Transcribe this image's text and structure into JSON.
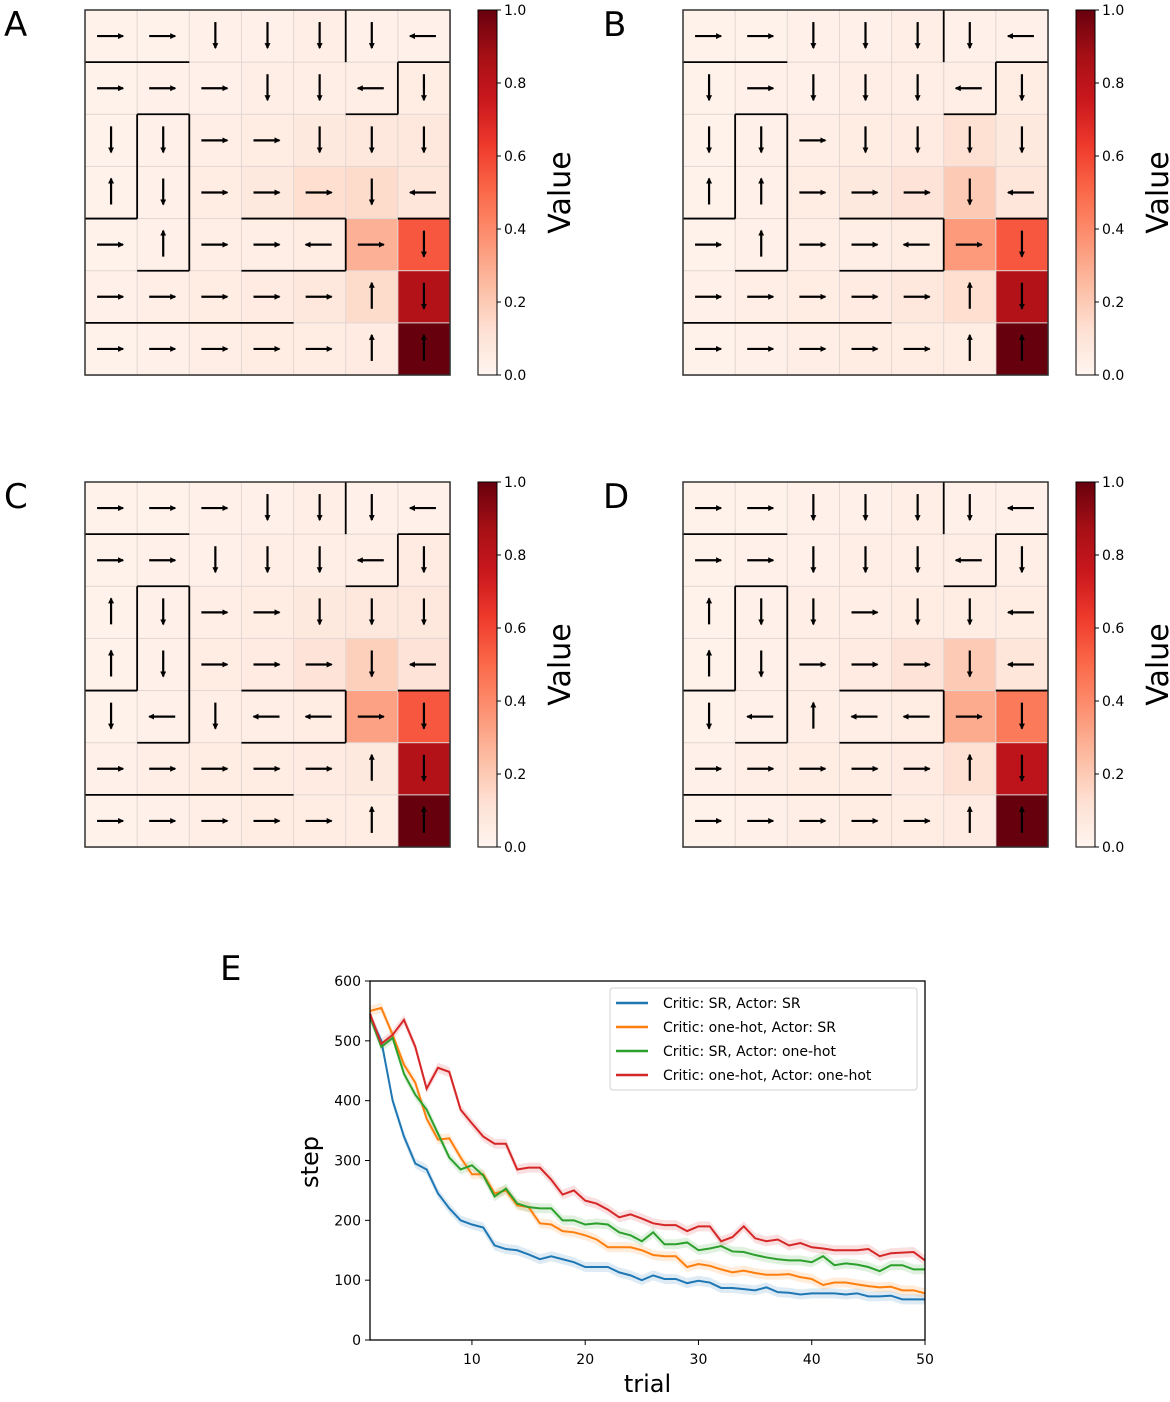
{
  "colors": {
    "blue": "#1f77b4",
    "orange": "#ff7f0e",
    "green": "#2ca02c",
    "red": "#d62728"
  },
  "colormap": [
    "#fff5f0",
    "#fee0d2",
    "#fcbba1",
    "#fc9272",
    "#fb6a4a",
    "#ef3b2c",
    "#cb181d",
    "#a50f15",
    "#67000d"
  ],
  "chart_data": [
    {
      "type": "heatmap",
      "panel": "A",
      "colorbar_label": "Value",
      "colorbar_ticks": [
        "0.0",
        "0.2",
        "0.4",
        "0.6",
        "0.8",
        "1.0"
      ],
      "vrange": [
        0,
        1
      ],
      "arrows": [
        "RRDDDDL",
        "RRRDDLD",
        "DDRRDDD",
        "UDRRRDL",
        "RURRLRD",
        "RRRRRUD",
        "RRRRRUU"
      ],
      "values": [
        [
          0.02,
          0.02,
          0.03,
          0.03,
          0.04,
          0.03,
          0.03
        ],
        [
          0.02,
          0.03,
          0.03,
          0.04,
          0.04,
          0.04,
          0.05
        ],
        [
          0.02,
          0.03,
          0.04,
          0.05,
          0.07,
          0.08,
          0.08
        ],
        [
          0.02,
          0.03,
          0.05,
          0.07,
          0.13,
          0.14,
          0.09
        ],
        [
          0.02,
          0.03,
          0.04,
          0.04,
          0.05,
          0.28,
          0.55
        ],
        [
          0.03,
          0.04,
          0.05,
          0.06,
          0.08,
          0.14,
          0.83
        ],
        [
          0.02,
          0.03,
          0.04,
          0.05,
          0.05,
          0.06,
          1.0
        ]
      ]
    },
    {
      "type": "heatmap",
      "panel": "B",
      "colorbar_label": "Value",
      "colorbar_ticks": [
        "0.0",
        "0.2",
        "0.4",
        "0.6",
        "0.8",
        "1.0"
      ],
      "vrange": [
        0,
        1
      ],
      "arrows": [
        "RRDDDDL",
        "DRDDDLD",
        "DDRDDDD",
        "UURRRDL",
        "RURRLRD",
        "RRRRRUD",
        "RRRRRUU"
      ],
      "values": [
        [
          0.02,
          0.02,
          0.03,
          0.03,
          0.04,
          0.03,
          0.03
        ],
        [
          0.02,
          0.03,
          0.03,
          0.04,
          0.04,
          0.04,
          0.05
        ],
        [
          0.02,
          0.03,
          0.04,
          0.05,
          0.06,
          0.12,
          0.07
        ],
        [
          0.02,
          0.03,
          0.05,
          0.07,
          0.1,
          0.2,
          0.09
        ],
        [
          0.02,
          0.03,
          0.04,
          0.04,
          0.05,
          0.35,
          0.55
        ],
        [
          0.03,
          0.04,
          0.05,
          0.06,
          0.08,
          0.13,
          0.83
        ],
        [
          0.02,
          0.03,
          0.04,
          0.05,
          0.05,
          0.05,
          1.0
        ]
      ]
    },
    {
      "type": "heatmap",
      "panel": "C",
      "colorbar_label": "Value",
      "colorbar_ticks": [
        "0.0",
        "0.2",
        "0.4",
        "0.6",
        "0.8",
        "1.0"
      ],
      "vrange": [
        0,
        1
      ],
      "arrows": [
        "RRRDDDL",
        "RRDDDLD",
        "UDRRDDD",
        "UDRRRDL",
        "DLDLLRD",
        "RRRRRUD",
        "RRRRRUU"
      ],
      "values": [
        [
          0.02,
          0.02,
          0.03,
          0.03,
          0.04,
          0.03,
          0.03
        ],
        [
          0.02,
          0.03,
          0.03,
          0.04,
          0.04,
          0.04,
          0.06
        ],
        [
          0.02,
          0.03,
          0.04,
          0.05,
          0.07,
          0.08,
          0.08
        ],
        [
          0.02,
          0.03,
          0.05,
          0.06,
          0.1,
          0.18,
          0.1
        ],
        [
          0.02,
          0.03,
          0.04,
          0.04,
          0.05,
          0.33,
          0.55
        ],
        [
          0.03,
          0.04,
          0.05,
          0.05,
          0.06,
          0.07,
          0.83
        ],
        [
          0.02,
          0.03,
          0.04,
          0.05,
          0.05,
          0.05,
          1.0
        ]
      ]
    },
    {
      "type": "heatmap",
      "panel": "D",
      "colorbar_label": "Value",
      "colorbar_ticks": [
        "0.0",
        "0.2",
        "0.4",
        "0.6",
        "0.8",
        "1.0"
      ],
      "vrange": [
        0,
        1
      ],
      "arrows": [
        "RRDDDDL",
        "RRDDDLD",
        "UDDRDDL",
        "UDRRRDL",
        "DLULLRD",
        "RRRRRUD",
        "RRRRRUU"
      ],
      "values": [
        [
          0.02,
          0.02,
          0.03,
          0.03,
          0.04,
          0.03,
          0.03
        ],
        [
          0.02,
          0.03,
          0.03,
          0.04,
          0.04,
          0.04,
          0.04
        ],
        [
          0.02,
          0.03,
          0.04,
          0.04,
          0.05,
          0.05,
          0.05
        ],
        [
          0.02,
          0.03,
          0.04,
          0.06,
          0.1,
          0.2,
          0.09
        ],
        [
          0.02,
          0.03,
          0.04,
          0.04,
          0.05,
          0.3,
          0.45
        ],
        [
          0.03,
          0.04,
          0.05,
          0.05,
          0.06,
          0.12,
          0.8
        ],
        [
          0.02,
          0.03,
          0.04,
          0.05,
          0.05,
          0.06,
          1.0
        ]
      ]
    },
    {
      "type": "line",
      "panel": "E",
      "xlabel": "trial",
      "ylabel": "step",
      "xlim": [
        1,
        50
      ],
      "ylim": [
        0,
        600
      ],
      "xticks": [
        "10",
        "20",
        "30",
        "40",
        "50"
      ],
      "yticks": [
        "0",
        "100",
        "200",
        "300",
        "400",
        "500",
        "600"
      ],
      "legend_position": "top-right",
      "series": [
        {
          "name": "Critic: SR, Actor: SR",
          "color": "#1f77b4",
          "values": [
            540,
            500,
            400,
            340,
            295,
            285,
            245,
            220,
            200,
            193,
            188,
            158,
            152,
            150,
            143,
            135,
            140,
            135,
            130,
            122,
            122,
            122,
            113,
            108,
            100,
            108,
            102,
            102,
            95,
            99,
            96,
            87,
            87,
            85,
            83,
            88,
            80,
            79,
            76,
            78,
            78,
            78,
            76,
            78,
            73,
            73,
            74,
            68,
            68,
            68
          ]
        },
        {
          "name": "Critic: one-hot, Actor: SR",
          "color": "#ff7f0e",
          "values": [
            550,
            555,
            510,
            460,
            430,
            370,
            335,
            337,
            305,
            277,
            277,
            245,
            250,
            225,
            222,
            195,
            193,
            182,
            180,
            175,
            168,
            155,
            155,
            155,
            150,
            142,
            140,
            140,
            122,
            127,
            124,
            118,
            113,
            116,
            112,
            109,
            109,
            110,
            105,
            102,
            92,
            96,
            96,
            93,
            90,
            88,
            89,
            83,
            83,
            78
          ]
        },
        {
          "name": "Critic: SR, Actor: one-hot",
          "color": "#2ca02c",
          "values": [
            540,
            490,
            505,
            445,
            410,
            385,
            345,
            305,
            285,
            292,
            275,
            240,
            253,
            228,
            222,
            220,
            220,
            200,
            200,
            193,
            195,
            193,
            180,
            175,
            165,
            180,
            160,
            160,
            163,
            150,
            153,
            157,
            148,
            147,
            142,
            138,
            135,
            133,
            133,
            130,
            140,
            125,
            128,
            126,
            122,
            115,
            125,
            125,
            118,
            118
          ]
        },
        {
          "name": "Critic: one-hot, Actor: one-hot",
          "color": "#d62728",
          "values": [
            545,
            495,
            510,
            535,
            490,
            420,
            455,
            448,
            385,
            362,
            340,
            328,
            328,
            285,
            288,
            288,
            268,
            243,
            250,
            233,
            228,
            218,
            205,
            210,
            203,
            195,
            192,
            192,
            182,
            190,
            190,
            165,
            172,
            190,
            170,
            165,
            168,
            158,
            162,
            155,
            153,
            150,
            150,
            150,
            152,
            140,
            145,
            146,
            147,
            133
          ]
        }
      ]
    }
  ]
}
